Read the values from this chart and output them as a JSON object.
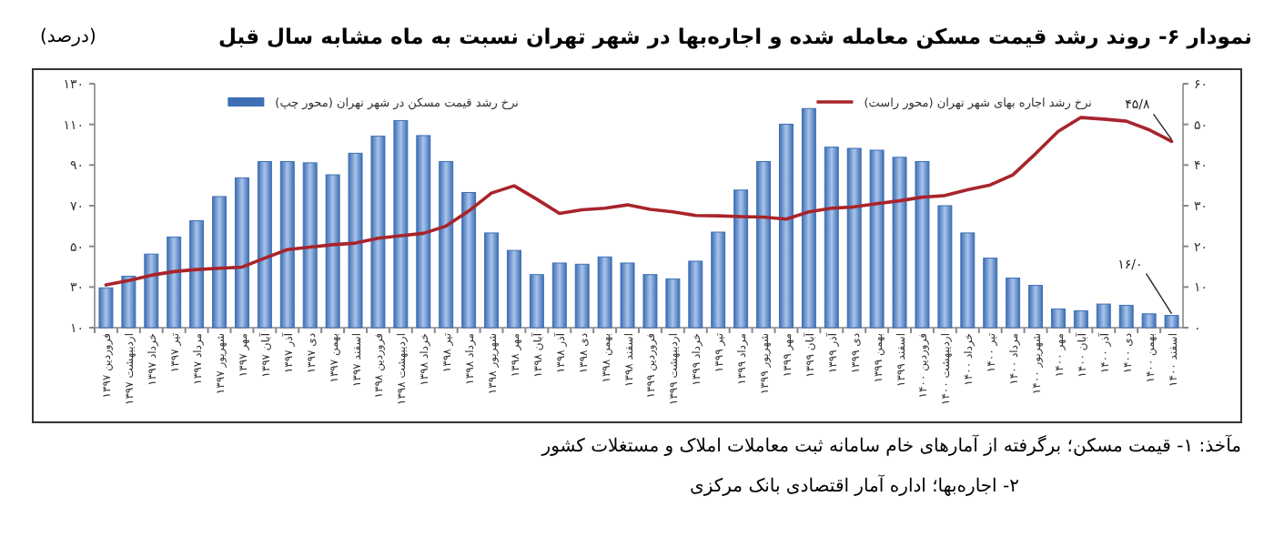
{
  "chart_data": {
    "type": "bar",
    "title": "نمودار ۶- روند رشد قیمت مسکن معامله شده و اجاره‌بها در شهر تهران نسبت به ماه مشابه سال قبل",
    "subtitle": "(درصد)",
    "categories": [
      "فروردین ۱۳۹۷",
      "اردیبهشت ۱۳۹۷",
      "خرداد ۱۳۹۷",
      "تیر ۱۳۹۷",
      "مرداد ۱۳۹۷",
      "شهریور ۱۳۹۷",
      "مهر ۱۳۹۷",
      "آبان ۱۳۹۷",
      "آذر ۱۳۹۷",
      "دی ۱۳۹۷",
      "بهمن ۱۳۹۷",
      "اسفند ۱۳۹۷",
      "فروردین ۱۳۹۸",
      "اردیبهشت ۱۳۹۸",
      "خرداد ۱۳۹۸",
      "تیر ۱۳۹۸",
      "مرداد ۱۳۹۸",
      "شهریور ۱۳۹۸",
      "مهر ۱۳۹۸",
      "آبان ۱۳۹۸",
      "آذر ۱۳۹۸",
      "دی ۱۳۹۸",
      "بهمن ۱۳۹۸",
      "اسفند ۱۳۹۸",
      "فروردین ۱۳۹۹",
      "اردیبهشت ۱۳۹۹",
      "خرداد ۱۳۹۹",
      "تیر ۱۳۹۹",
      "مرداد ۱۳۹۹",
      "شهریور ۱۳۹۹",
      "مهر ۱۳۹۹",
      "آبان ۱۳۹۹",
      "آذر ۱۳۹۹",
      "دی ۱۳۹۹",
      "بهمن ۱۳۹۹",
      "اسفند ۱۳۹۹",
      "فروردین ۱۴۰۰",
      "اردیبهشت ۱۴۰۰",
      "خرداد ۱۴۰۰",
      "تیر ۱۴۰۰",
      "مرداد ۱۴۰۰",
      "شهریور ۱۴۰۰",
      "مهر ۱۴۰۰",
      "آبان ۱۴۰۰",
      "آذر ۱۴۰۰",
      "دی ۱۴۰۰",
      "بهمن ۱۴۰۰",
      "اسفند ۱۴۰۰"
    ],
    "series": [
      {
        "name": "نرخ رشد قیمت مسکن در شهر تهران (محور چپ)",
        "color": "#3d6fb5",
        "values": [
          29.6,
          35.3,
          46.2,
          54.6,
          62.6,
          74.5,
          83.7,
          91.7,
          91.7,
          91.1,
          85.2,
          95.8,
          104.2,
          111.9,
          104.5,
          91.7,
          76.5,
          56.6,
          48,
          36.1,
          41.8,
          41.2,
          44.8,
          41.8,
          36.1,
          34,
          42.7,
          57,
          77.7,
          91.7,
          110.1,
          117.8,
          98.8,
          98.2,
          97.3,
          93.8,
          91.7,
          70,
          56.6,
          44.2,
          34.4,
          30.8,
          19.2,
          18.3,
          21.6,
          21,
          16.8,
          16.0
        ],
        "value_labels": [
          null,
          null,
          null,
          null,
          null,
          null,
          null,
          null,
          null,
          null,
          null,
          null,
          null,
          null,
          null,
          null,
          null,
          null,
          null,
          null,
          null,
          null,
          null,
          null,
          null,
          null,
          null,
          null,
          null,
          null,
          null,
          null,
          null,
          null,
          null,
          null,
          null,
          null,
          null,
          null,
          null,
          null,
          null,
          null,
          null,
          null,
          null,
          "۱۶/۰"
        ]
      },
      {
        "name": "نرخ رشد اجاره بهای شهر تهران (محور راست)",
        "type": "line",
        "axis": "y2",
        "color": "#a8242b",
        "values": [
          10.5,
          11.6,
          12.9,
          13.8,
          14.3,
          14.6,
          14.9,
          17.1,
          19.2,
          19.8,
          20.4,
          20.8,
          22,
          22.6,
          23.2,
          25,
          28.7,
          33.1,
          34.9,
          31.6,
          28.1,
          29,
          29.4,
          30.2,
          29.1,
          28.5,
          27.6,
          27.5,
          27.3,
          27.2,
          26.7,
          28.5,
          29.4,
          29.7,
          30.5,
          31.2,
          32.1,
          32.5,
          33.9,
          35.1,
          37.6,
          42.8,
          48.3,
          51.7,
          51.3,
          50.8,
          48.7,
          45.8
        ],
        "value_labels": [
          null,
          null,
          null,
          null,
          null,
          null,
          null,
          null,
          null,
          null,
          null,
          null,
          null,
          null,
          null,
          null,
          null,
          null,
          null,
          null,
          null,
          null,
          null,
          null,
          null,
          null,
          null,
          null,
          null,
          null,
          null,
          null,
          null,
          null,
          null,
          null,
          null,
          null,
          null,
          null,
          null,
          null,
          null,
          null,
          null,
          null,
          null,
          "۴۵/۸"
        ]
      }
    ],
    "ylim": [
      10,
      130
    ],
    "yticks": [
      {
        "value": 10,
        "label": "۱۰"
      },
      {
        "value": 30,
        "label": "۳۰"
      },
      {
        "value": 50,
        "label": "۵۰"
      },
      {
        "value": 70,
        "label": "۷۰"
      },
      {
        "value": 90,
        "label": "۹۰"
      },
      {
        "value": 110,
        "label": "۱۱۰"
      },
      {
        "value": 130,
        "label": "۱۳۰"
      }
    ],
    "y2lim": [
      0,
      60
    ],
    "y2ticks": [
      {
        "value": 0,
        "label": "۰"
      },
      {
        "value": 10,
        "label": "۱۰"
      },
      {
        "value": 20,
        "label": "۲۰"
      },
      {
        "value": 30,
        "label": "۳۰"
      },
      {
        "value": 40,
        "label": "۴۰"
      },
      {
        "value": 50,
        "label": "۵۰"
      },
      {
        "value": 60,
        "label": "۶۰"
      }
    ],
    "legend": "top",
    "grid": false,
    "annotations": [
      "مآخذ: ۱- قیمت مسکن؛ برگرفته از آمارهای خام سامانه ثبت معاملات املاک و مستغلات کشور",
      "۲- اجاره‌بها؛ اداره آمار اقتصادی بانک مرکزی"
    ]
  }
}
